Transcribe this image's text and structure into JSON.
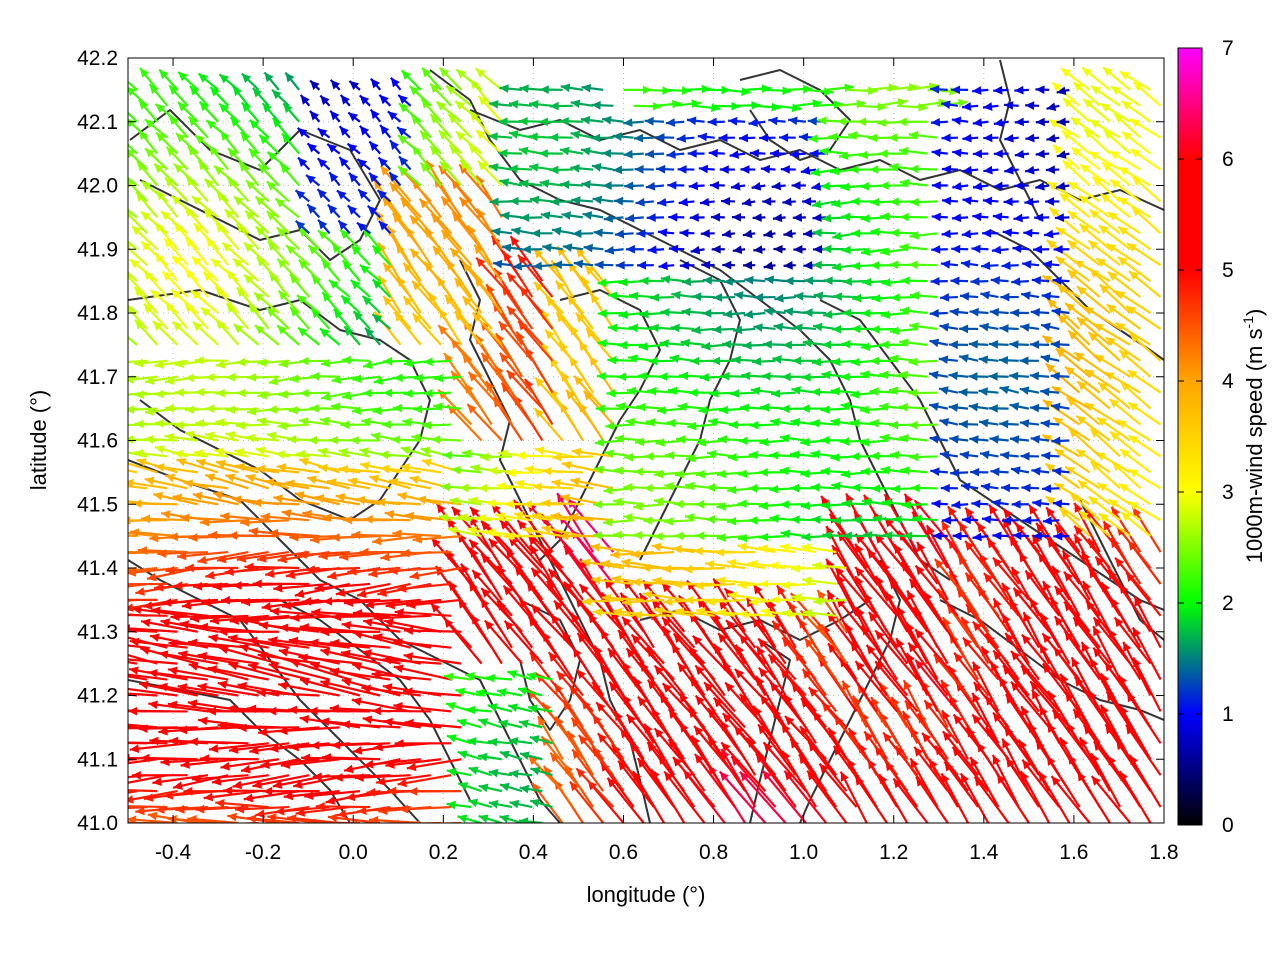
{
  "chart_data": {
    "type": "quiver",
    "xlabel": "longitude (°)",
    "ylabel": "latitude (°)",
    "xlim": [
      -0.5,
      1.8
    ],
    "ylim": [
      41.0,
      42.2
    ],
    "x_ticks": [
      "-0.4",
      "-0.2",
      "0.0",
      "0.2",
      "0.4",
      "0.6",
      "0.8",
      "1.0",
      "1.2",
      "1.4",
      "1.6",
      "1.8"
    ],
    "x_tick_values": [
      -0.4,
      -0.2,
      0.0,
      0.2,
      0.4,
      0.6,
      0.8,
      1.0,
      1.2,
      1.4,
      1.6,
      1.8
    ],
    "y_ticks": [
      "41.0",
      "41.1",
      "41.2",
      "41.3",
      "41.4",
      "41.5",
      "41.6",
      "41.7",
      "41.8",
      "41.9",
      "42.0",
      "42.1",
      "42.2"
    ],
    "y_tick_values": [
      41.0,
      41.1,
      41.2,
      41.3,
      41.4,
      41.5,
      41.6,
      41.7,
      41.8,
      41.9,
      42.0,
      42.1,
      42.2
    ],
    "colorbar": {
      "label": "1000m-wind speed (m s",
      "label_sup": "-1",
      "label_close": ")",
      "range": [
        0,
        7
      ],
      "ticks": [
        "0",
        "1",
        "2",
        "3",
        "4",
        "5",
        "6",
        "7"
      ],
      "tick_values": [
        0,
        1,
        2,
        3,
        4,
        5,
        6,
        7
      ],
      "colors": [
        "#000000",
        "#0000ff",
        "#00ff00",
        "#ffff00",
        "#ffa500",
        "#ff0000",
        "#ff00ff"
      ]
    },
    "grid": true,
    "wind_field": {
      "lon_start": -0.48,
      "lon_step": 0.045,
      "lon_count": 51,
      "lat_start": 41.0,
      "lat_step": 0.025,
      "lat_count": 47,
      "note_regions": [
        {
          "name": "west",
          "lon": [
            -0.5,
            0.2
          ],
          "lat": [
            41.0,
            41.75
          ],
          "u": -4.8,
          "v": 0.1,
          "speed": 5.2
        },
        {
          "name": "northwest",
          "lon": [
            -0.5,
            0.3
          ],
          "lat": [
            41.75,
            42.2
          ],
          "u": -1.2,
          "v": 0.8,
          "speed": 2.2
        },
        {
          "name": "north-center",
          "lon": [
            0.3,
            1.3
          ],
          "lat": [
            41.85,
            42.2
          ],
          "u": -0.3,
          "v": 0.1,
          "speed": 1.0
        },
        {
          "name": "central",
          "lon": [
            0.6,
            1.3
          ],
          "lat": [
            41.45,
            41.85
          ],
          "u": -2.0,
          "v": 0.0,
          "speed": 2.0
        },
        {
          "name": "east-center",
          "lon": [
            1.3,
            1.6
          ],
          "lat": [
            41.45,
            41.85
          ],
          "u": -1.0,
          "v": 0.0,
          "speed": 1.0
        },
        {
          "name": "southeast",
          "lon": [
            1.1,
            1.8
          ],
          "lat": [
            41.0,
            41.45
          ],
          "u": -2.5,
          "v": 3.5,
          "speed": 5.0
        },
        {
          "name": "south-center",
          "lon": [
            0.3,
            1.1
          ],
          "lat": [
            41.0,
            41.45
          ],
          "u": -2.5,
          "v": 2.5,
          "speed": 6.0
        }
      ]
    },
    "contours": "topography (dark gray lines)"
  }
}
